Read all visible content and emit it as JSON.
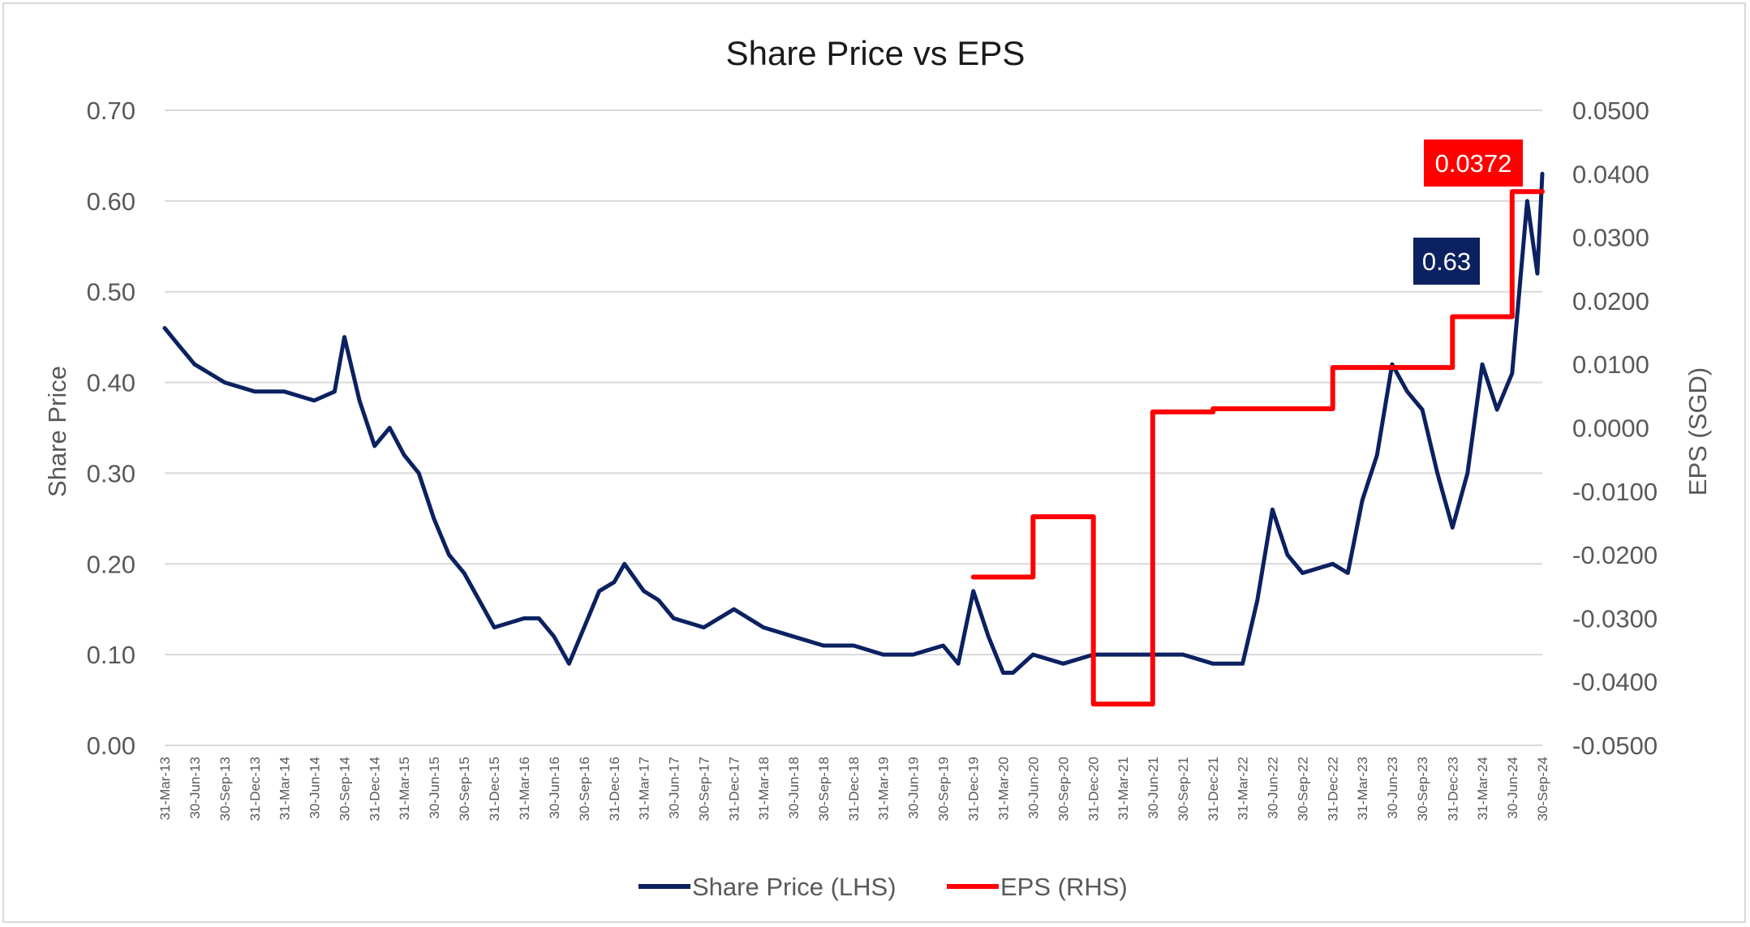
{
  "chart_data": {
    "type": "line",
    "title": "Share Price vs EPS",
    "ylabel_left": "Share Price",
    "ylabel_right": "EPS (SGD)",
    "ylim_left": [
      0,
      0.7
    ],
    "ylim_right": [
      -0.05,
      0.05
    ],
    "yticks_left": [
      "0.00",
      "0.10",
      "0.20",
      "0.30",
      "0.40",
      "0.50",
      "0.60",
      "0.70"
    ],
    "yticks_right": [
      "-0.0500",
      "-0.0400",
      "-0.0300",
      "-0.0200",
      "-0.0100",
      "0.0000",
      "0.0100",
      "0.0200",
      "0.0300",
      "0.0400",
      "0.0500"
    ],
    "xticks": [
      "31-Mar-13",
      "30-Jun-13",
      "30-Sep-13",
      "31-Dec-13",
      "31-Mar-14",
      "30-Jun-14",
      "30-Sep-14",
      "31-Dec-14",
      "31-Mar-15",
      "30-Jun-15",
      "30-Sep-15",
      "31-Dec-15",
      "31-Mar-16",
      "30-Jun-16",
      "30-Sep-16",
      "31-Dec-16",
      "31-Mar-17",
      "30-Jun-17",
      "30-Sep-17",
      "31-Dec-17",
      "31-Mar-18",
      "30-Jun-18",
      "30-Sep-18",
      "31-Dec-18",
      "31-Mar-19",
      "30-Jun-19",
      "30-Sep-19",
      "31-Dec-19",
      "31-Mar-20",
      "30-Jun-20",
      "30-Sep-20",
      "31-Dec-20",
      "31-Mar-21",
      "30-Jun-21",
      "30-Sep-21",
      "31-Dec-21",
      "31-Mar-22",
      "30-Jun-22",
      "30-Sep-22",
      "31-Dec-22",
      "31-Mar-23",
      "30-Jun-23",
      "30-Sep-23",
      "31-Dec-23",
      "31-Mar-24",
      "30-Jun-24",
      "30-Sep-24"
    ],
    "grid": true,
    "legend_position": "bottom",
    "series": [
      {
        "name": "Share Price (LHS)",
        "axis": "left",
        "color": "#0b2160",
        "x": [
          "2013-03-31",
          "2013-05-15",
          "2013-06-30",
          "2013-09-30",
          "2013-12-31",
          "2014-03-31",
          "2014-06-30",
          "2014-08-31",
          "2014-09-30",
          "2014-11-15",
          "2014-12-31",
          "2015-02-15",
          "2015-03-31",
          "2015-05-15",
          "2015-06-30",
          "2015-08-15",
          "2015-09-30",
          "2015-11-15",
          "2015-12-31",
          "2016-03-31",
          "2016-05-15",
          "2016-06-30",
          "2016-08-15",
          "2016-09-30",
          "2016-11-15",
          "2016-12-31",
          "2017-01-31",
          "2017-03-31",
          "2017-05-15",
          "2017-06-30",
          "2017-09-30",
          "2017-12-31",
          "2018-03-31",
          "2018-06-30",
          "2018-09-30",
          "2018-12-31",
          "2019-03-31",
          "2019-06-30",
          "2019-09-30",
          "2019-11-15",
          "2019-12-31",
          "2020-02-15",
          "2020-03-31",
          "2020-04-30",
          "2020-06-30",
          "2020-09-30",
          "2020-12-31",
          "2021-03-31",
          "2021-06-30",
          "2021-09-30",
          "2021-12-31",
          "2022-03-31",
          "2022-05-15",
          "2022-06-30",
          "2022-08-15",
          "2022-09-30",
          "2022-12-31",
          "2023-02-15",
          "2023-03-31",
          "2023-05-15",
          "2023-06-30",
          "2023-08-15",
          "2023-09-30",
          "2023-11-15",
          "2023-12-31",
          "2024-02-15",
          "2024-03-31",
          "2024-05-15",
          "2024-06-30",
          "2024-08-15",
          "2024-09-15",
          "2024-09-30"
        ],
        "values": [
          0.46,
          0.44,
          0.42,
          0.4,
          0.39,
          0.39,
          0.38,
          0.39,
          0.45,
          0.38,
          0.33,
          0.35,
          0.32,
          0.3,
          0.25,
          0.21,
          0.19,
          0.16,
          0.13,
          0.14,
          0.14,
          0.12,
          0.09,
          0.13,
          0.17,
          0.18,
          0.2,
          0.17,
          0.16,
          0.14,
          0.13,
          0.15,
          0.13,
          0.12,
          0.11,
          0.11,
          0.1,
          0.1,
          0.11,
          0.09,
          0.17,
          0.12,
          0.08,
          0.08,
          0.1,
          0.09,
          0.1,
          0.1,
          0.1,
          0.1,
          0.09,
          0.09,
          0.16,
          0.26,
          0.21,
          0.19,
          0.2,
          0.19,
          0.27,
          0.32,
          0.42,
          0.39,
          0.37,
          0.3,
          0.24,
          0.3,
          0.42,
          0.37,
          0.41,
          0.6,
          0.52,
          0.63
        ]
      },
      {
        "name": "EPS (RHS)",
        "axis": "right",
        "color": "#ff0000",
        "step": true,
        "x": [
          "2019-12-31",
          "2020-06-30",
          "2020-12-31",
          "2021-06-30",
          "2021-12-31",
          "2022-12-31",
          "2023-12-31",
          "2024-06-30",
          "2024-09-30"
        ],
        "values": [
          -0.0235,
          -0.014,
          -0.0435,
          0.0025,
          0.003,
          0.0095,
          0.0175,
          0.0372,
          0.0372
        ]
      }
    ],
    "annotations": [
      {
        "text": "0.0372",
        "series": "EPS (RHS)",
        "color": "#ff0000"
      },
      {
        "text": "0.63",
        "series": "Share Price (LHS)",
        "color": "#0b2160"
      }
    ]
  }
}
